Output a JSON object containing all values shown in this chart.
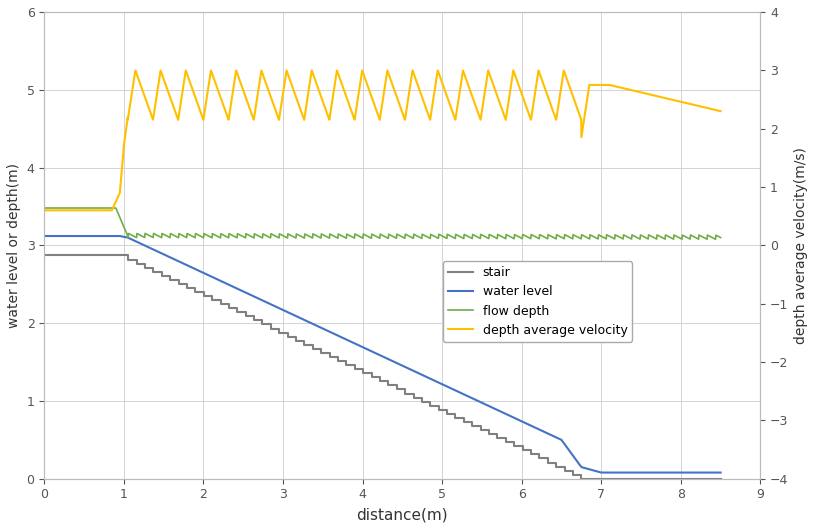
{
  "title": "",
  "xlabel": "distance(m)",
  "ylabel_left": "water level or depth(m)",
  "ylabel_right": "depth average velocity(m/s)",
  "xlim": [
    0.0,
    9.0
  ],
  "ylim_left": [
    0.0,
    6.0
  ],
  "ylim_right": [
    -4.0,
    4.0
  ],
  "stair_color": "#808080",
  "water_level_color": "#4472C4",
  "flow_depth_color": "#70AD47",
  "velocity_color": "#FFC000",
  "background_color": "#FFFFFF",
  "grid_color": "#D3D3D3",
  "legend_labels": [
    "stair",
    "water level",
    "flow depth",
    "depth average velocity"
  ],
  "n_steps": 55,
  "step_start_x": 0.95,
  "step_end_x": 6.75,
  "step_start_y": 2.87,
  "step_end_y": 0.0
}
